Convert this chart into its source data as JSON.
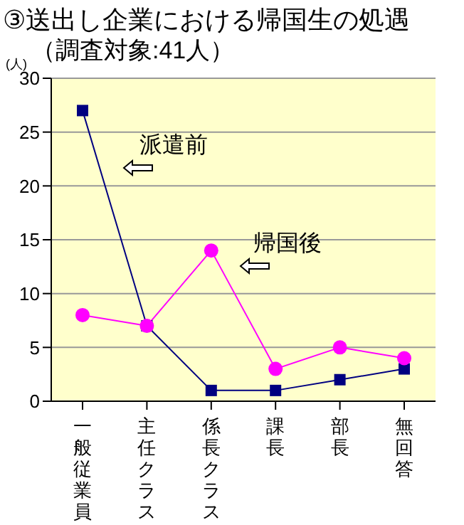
{
  "chart_data": {
    "type": "line",
    "title": "③送出し企業における帰国生の処遇",
    "subtitle": "（調査対象:41人）",
    "ylabel": "(人)",
    "categories": [
      "一般従業員",
      "主任クラス",
      "係長クラス",
      "課長",
      "部長",
      "無回答"
    ],
    "series": [
      {
        "name": "派遣前",
        "color": "#000080",
        "marker": "square",
        "values": [
          27,
          7,
          1,
          1,
          2,
          3
        ]
      },
      {
        "name": "帰国後",
        "color": "#ff00ff",
        "marker": "circle",
        "values": [
          8,
          7,
          14,
          3,
          5,
          4
        ]
      }
    ],
    "ylim": [
      0,
      30
    ],
    "yticks": [
      0,
      5,
      10,
      15,
      20,
      25,
      30
    ],
    "grid": "y"
  }
}
